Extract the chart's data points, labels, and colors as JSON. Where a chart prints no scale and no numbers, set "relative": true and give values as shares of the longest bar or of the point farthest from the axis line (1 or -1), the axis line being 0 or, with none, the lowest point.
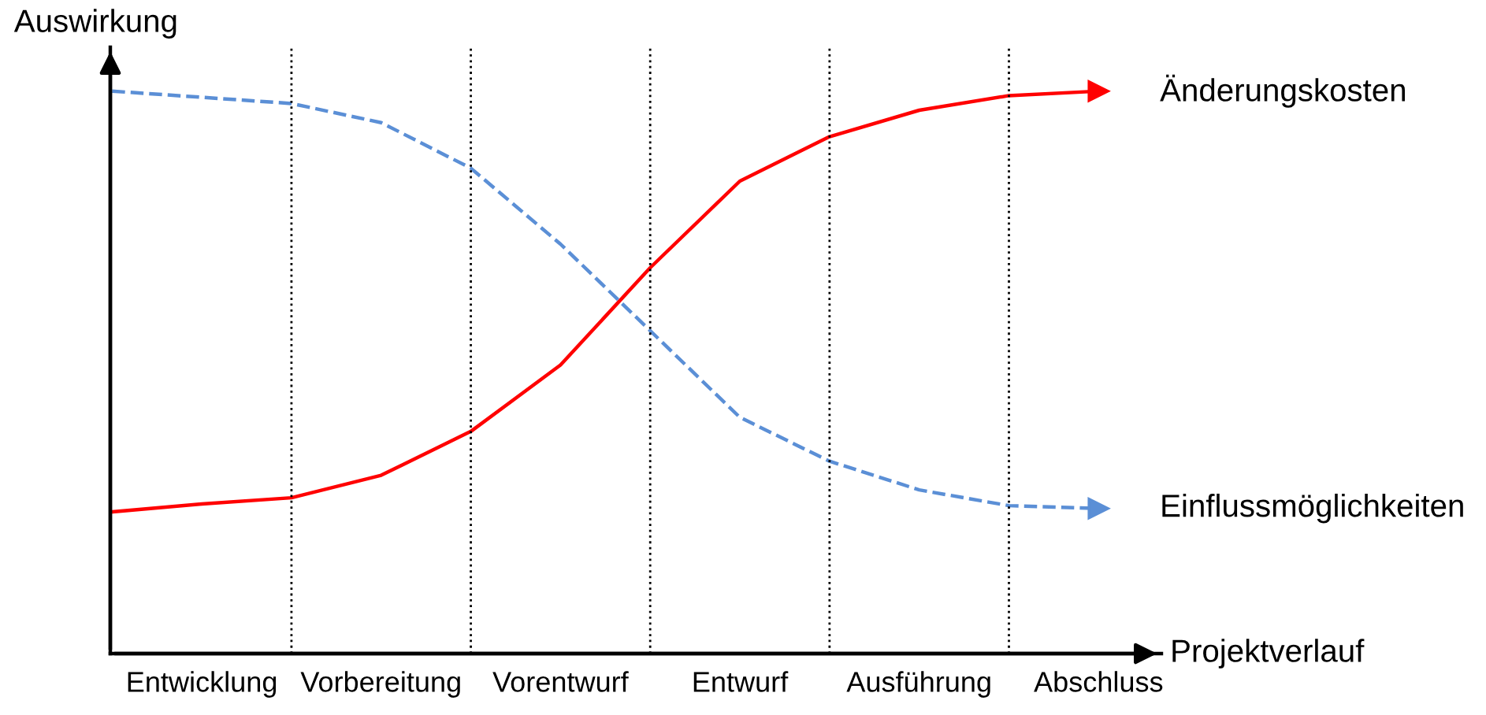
{
  "chart_data": {
    "type": "line",
    "relative": true,
    "xlabel": "Projektverlauf",
    "ylabel": "Auswirkung",
    "categories": [
      null,
      "Entwicklung",
      null,
      "Vorbereitung",
      null,
      "Vorentwurf",
      null,
      "Entwurf",
      null,
      "Ausführung",
      null,
      "Abschluss"
    ],
    "series": [
      {
        "name": "Änderungskosten",
        "color": "#ff0000",
        "line_style": "solid",
        "values": [
          0.252,
          0.266,
          0.277,
          0.317,
          0.395,
          0.513,
          0.686,
          0.84,
          0.919,
          0.966,
          0.992,
          1.0
        ]
      },
      {
        "name": "Einflussmöglichkeiten",
        "color": "#5b8fd6",
        "line_style": "dashed",
        "values": [
          1.0,
          0.989,
          0.978,
          0.944,
          0.863,
          0.728,
          0.574,
          0.42,
          0.342,
          0.291,
          0.263,
          0.258
        ]
      }
    ],
    "legend": "right",
    "grid": "x"
  }
}
